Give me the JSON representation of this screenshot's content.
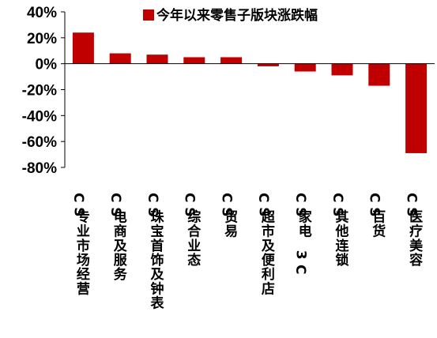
{
  "chart_data": {
    "type": "bar",
    "categories": [
      "CS专业市场经营",
      "CS电商及服务",
      "CS珠宝首饰及钟表",
      "CS综合业态",
      "CS贸易",
      "CS超市及便利店",
      "CS家电3C",
      "CS其他连锁",
      "CS百货",
      "CS医疗美容"
    ],
    "series": [
      {
        "name": "今年以来零售子版块涨跌幅",
        "values": [
          24,
          8,
          7,
          5,
          5,
          -2,
          -6,
          -9,
          -17,
          -69
        ]
      }
    ],
    "ylim": [
      -80,
      40
    ],
    "yticks": [
      "40%",
      "20%",
      "0%",
      "-20%",
      "-40%",
      "-60%",
      "-80%"
    ],
    "ytick_values": [
      40,
      20,
      0,
      -20,
      -40,
      -60,
      -80
    ],
    "legend_position": "top-right",
    "bar_color": "#C00000",
    "grid": false
  }
}
